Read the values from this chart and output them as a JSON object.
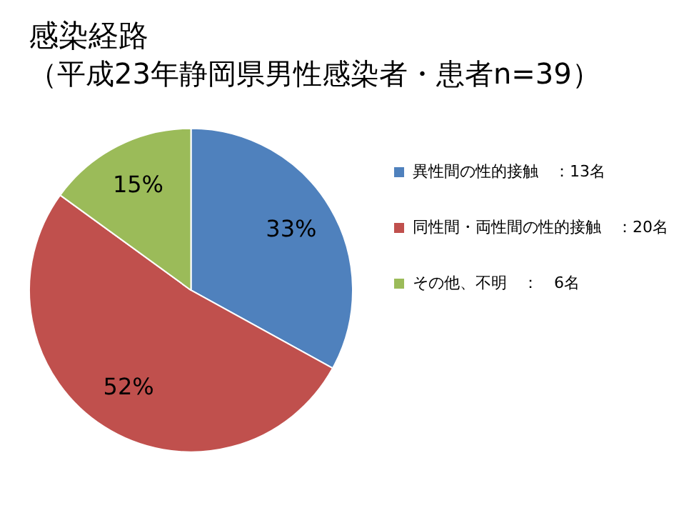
{
  "chart_data": {
    "type": "pie",
    "title": "感染経路",
    "subtitle": "（平成23年静岡県男性感染者・患者n=39）",
    "categories": [
      "異性間の性的接触　：13名",
      "同性間・両性間の性的接触　：20名",
      "その他、不明　：　6名"
    ],
    "values": [
      33,
      52,
      15
    ],
    "colors": [
      "#4f81bd",
      "#c0504d",
      "#9bbb59"
    ],
    "value_labels": [
      "33%",
      "52%",
      "15%"
    ],
    "legend": "right"
  }
}
